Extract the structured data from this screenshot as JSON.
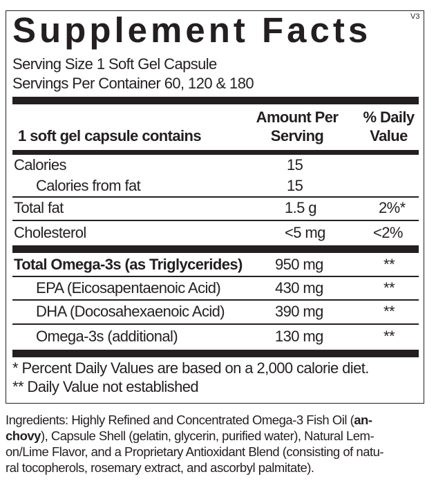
{
  "title": "Supplement Facts",
  "version": "V3",
  "serving_size": "Serving Size 1 Soft Gel Capsule",
  "servings_per_container": "Servings Per Container 60, 120 & 180",
  "header": {
    "contains": "1 soft gel capsule contains",
    "amount_1": "Amount Per",
    "amount_2": "Serving",
    "dv_1": "% Daily",
    "dv_2": "Value"
  },
  "rows": [
    {
      "name": "Calories",
      "amount": "15",
      "dv": ""
    },
    {
      "name": "Calories from fat",
      "amount": "15",
      "dv": ""
    },
    {
      "name": "Total fat",
      "amount": "1.5 g",
      "dv": "2%*"
    },
    {
      "name": "Cholesterol",
      "amount": "<5 mg",
      "dv": "<2%"
    },
    {
      "name": "Total Omega-3s (as Triglycerides)",
      "amount": "950 mg",
      "dv": "**"
    },
    {
      "name": "EPA (Eicosapentaenoic Acid)",
      "amount": "430 mg",
      "dv": "**"
    },
    {
      "name": "DHA (Docosahexaenoic Acid)",
      "amount": "390 mg",
      "dv": "**"
    },
    {
      "name": "Omega-3s (additional)",
      "amount": "130 mg",
      "dv": "**"
    }
  ],
  "footnotes": [
    "* Percent Daily Values are based on a 2,000 calorie diet.",
    "** Daily Value not established"
  ],
  "ingredients": {
    "l1a": "Ingredients: Highly Refined and Concentrated Omega-3 Fish Oil (",
    "l1b": "an-",
    "l2a": "chovy",
    "l2b": "), Capsule Shell (gelatin, glycerin, purified water), Natural Lem-",
    "l3": "on/Lime Flavor, and a Proprietary Antioxidant Blend (consisting of natu-",
    "l4": "ral tocopherols, rosemary extract, and ascorbyl palmitate)."
  }
}
